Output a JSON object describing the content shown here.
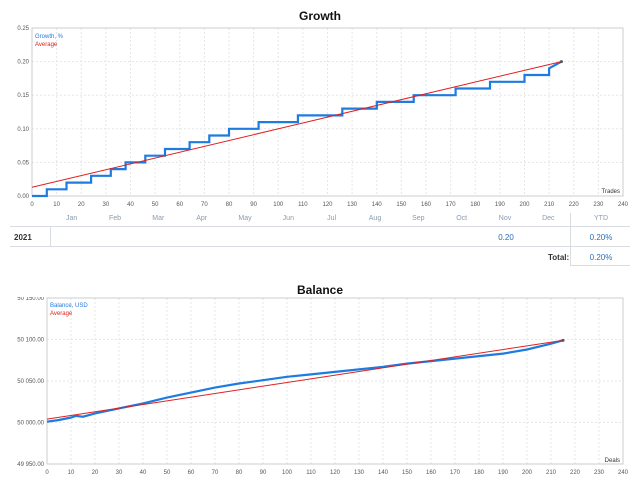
{
  "growth": {
    "title": "Growth",
    "legend": {
      "series": "Growth, %",
      "average": "Average"
    },
    "x_unit": "Trades",
    "x_ticks": [
      "0",
      "10",
      "20",
      "30",
      "40",
      "50",
      "60",
      "70",
      "80",
      "90",
      "100",
      "110",
      "120",
      "130",
      "140",
      "150",
      "160",
      "170",
      "180",
      "190",
      "200",
      "210",
      "220",
      "230",
      "240"
    ],
    "y_ticks": [
      "0.00",
      "0.05",
      "0.10",
      "0.15",
      "0.20",
      "0.25"
    ],
    "colors": {
      "series": "#1e7be0",
      "average": "#e02020"
    }
  },
  "monthly": {
    "months": [
      "Jan",
      "Feb",
      "Mar",
      "Apr",
      "May",
      "Jun",
      "Jul",
      "Aug",
      "Sep",
      "Oct",
      "Nov",
      "Dec"
    ],
    "ytd_header": "YTD",
    "year": "2021",
    "nov_value": "0.20",
    "ytd_value": "0.20%",
    "total_label": "Total:",
    "total_value": "0.20%"
  },
  "balance": {
    "title": "Balance",
    "legend": {
      "series": "Balance, USD",
      "average": "Average"
    },
    "x_unit": "Deals",
    "x_ticks": [
      "0",
      "10",
      "20",
      "30",
      "40",
      "50",
      "60",
      "70",
      "80",
      "90",
      "100",
      "110",
      "120",
      "130",
      "140",
      "150",
      "160",
      "170",
      "180",
      "190",
      "200",
      "210",
      "220",
      "230",
      "240"
    ],
    "y_ticks": [
      "49 950.00",
      "50 000.00",
      "50 050.00",
      "50 100.00",
      "50 150.00"
    ]
  },
  "chart_data": [
    {
      "type": "line",
      "title": "Growth",
      "xlabel": "Trades",
      "xlim": [
        0,
        240
      ],
      "ylim": [
        0,
        0.25
      ],
      "series": [
        {
          "name": "Growth, %",
          "x": [
            0,
            6,
            6,
            14,
            14,
            24,
            24,
            32,
            32,
            38,
            38,
            46,
            46,
            54,
            54,
            64,
            64,
            72,
            72,
            80,
            80,
            92,
            92,
            108,
            108,
            126,
            126,
            140,
            140,
            155,
            155,
            172,
            172,
            186,
            186,
            200,
            200,
            210,
            210,
            215
          ],
          "y": [
            0,
            0,
            0.01,
            0.01,
            0.02,
            0.02,
            0.03,
            0.03,
            0.04,
            0.04,
            0.05,
            0.05,
            0.06,
            0.06,
            0.07,
            0.07,
            0.08,
            0.08,
            0.09,
            0.09,
            0.1,
            0.1,
            0.11,
            0.11,
            0.12,
            0.12,
            0.13,
            0.13,
            0.14,
            0.14,
            0.15,
            0.15,
            0.16,
            0.16,
            0.17,
            0.17,
            0.18,
            0.18,
            0.19,
            0.2
          ]
        },
        {
          "name": "Average",
          "x": [
            0,
            215
          ],
          "y": [
            0.013,
            0.2
          ]
        }
      ]
    },
    {
      "type": "table",
      "columns": [
        "Jan",
        "Feb",
        "Mar",
        "Apr",
        "May",
        "Jun",
        "Jul",
        "Aug",
        "Sep",
        "Oct",
        "Nov",
        "Dec",
        "YTD"
      ],
      "rows": [
        {
          "year": "2021",
          "Nov": 0.2,
          "YTD": "0.20%"
        }
      ],
      "total": "0.20%"
    },
    {
      "type": "line",
      "title": "Balance",
      "xlabel": "Deals",
      "xlim": [
        0,
        240
      ],
      "ylim": [
        49950,
        50150
      ],
      "series": [
        {
          "name": "Balance, USD",
          "x": [
            0,
            5,
            10,
            12,
            15,
            20,
            30,
            40,
            50,
            60,
            70,
            80,
            90,
            100,
            110,
            120,
            130,
            140,
            150,
            160,
            170,
            180,
            190,
            200,
            210,
            215
          ],
          "y": [
            50001,
            50003,
            50006,
            50008,
            50007,
            50011,
            50017,
            50023,
            50030,
            50036,
            50042,
            50047,
            50051,
            50055,
            50058,
            50061,
            50064,
            50067,
            50071,
            50074,
            50077,
            50080,
            50083,
            50088,
            50095,
            50099
          ]
        },
        {
          "name": "Average",
          "x": [
            0,
            215
          ],
          "y": [
            50004,
            50099
          ]
        }
      ]
    }
  ]
}
